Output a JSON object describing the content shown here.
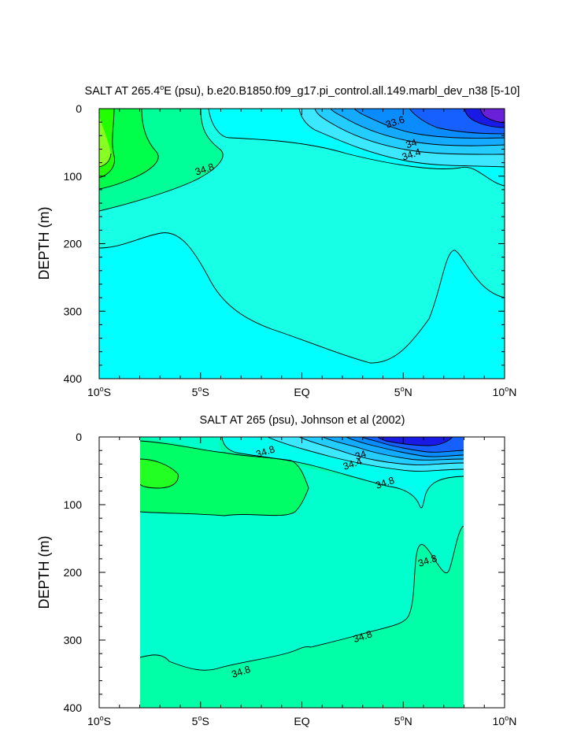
{
  "chart_data": [
    {
      "type": "contour",
      "title": "SALT AT 265.4°E (psu), b.e20.B1850.f09_g17.pi_control.all.149.marbl_dev_n38 [5-10]",
      "title_parts": {
        "pre": "SALT AT 265.4",
        "sup": "o",
        "post": "E (psu), b.e20.B1850.f09_g17.pi_control.all.149.marbl_dev_n38 [5-10]"
      },
      "ylabel": "DEPTH (m)",
      "xlim": [
        -10,
        10
      ],
      "ylim": [
        0,
        400
      ],
      "y_inverted": true,
      "x_ticks": [
        {
          "value": -10,
          "num": "10",
          "sup": "o",
          "suffix": "S"
        },
        {
          "value": -5,
          "num": "5",
          "sup": "o",
          "suffix": "S"
        },
        {
          "value": 0,
          "num": "EQ",
          "sup": "",
          "suffix": ""
        },
        {
          "value": 5,
          "num": "5",
          "sup": "o",
          "suffix": "N"
        },
        {
          "value": 10,
          "num": "10",
          "sup": "o",
          "suffix": "N"
        }
      ],
      "y_ticks": [
        0,
        100,
        200,
        300,
        400
      ],
      "data_x_range": [
        -10,
        10
      ],
      "contour_labels": [
        {
          "text": "33.6",
          "x": 4.6,
          "z": 20
        },
        {
          "text": "34",
          "x": 5.4,
          "z": 52
        },
        {
          "text": "34.4",
          "x": 5.4,
          "z": 68
        },
        {
          "text": "34.8",
          "x": -4.8,
          "z": 90
        }
      ]
    },
    {
      "type": "contour",
      "title": "SALT AT 265 (psu), Johnson et al (2002)",
      "ylabel": "DEPTH (m)",
      "xlim": [
        -10,
        10
      ],
      "ylim": [
        0,
        400
      ],
      "y_inverted": true,
      "x_ticks": [
        {
          "value": -10,
          "num": "10",
          "sup": "o",
          "suffix": "S"
        },
        {
          "value": -5,
          "num": "5",
          "sup": "o",
          "suffix": "S"
        },
        {
          "value": 0,
          "num": "EQ",
          "sup": "",
          "suffix": ""
        },
        {
          "value": 5,
          "num": "5",
          "sup": "o",
          "suffix": "N"
        },
        {
          "value": 10,
          "num": "10",
          "sup": "o",
          "suffix": "N"
        }
      ],
      "y_ticks": [
        0,
        100,
        200,
        300,
        400
      ],
      "data_x_range": [
        -8,
        8
      ],
      "contour_labels": [
        {
          "text": "34.8",
          "x": -1.8,
          "z": 22
        },
        {
          "text": "34",
          "x": 2.9,
          "z": 27
        },
        {
          "text": "34.4",
          "x": 2.5,
          "z": 40
        },
        {
          "text": "34.8",
          "x": 4.1,
          "z": 68
        },
        {
          "text": "34.8",
          "x": 6.2,
          "z": 183
        },
        {
          "text": "34.8",
          "x": 3.0,
          "z": 295
        },
        {
          "text": "34.8",
          "x": -3.0,
          "z": 347
        }
      ]
    }
  ]
}
